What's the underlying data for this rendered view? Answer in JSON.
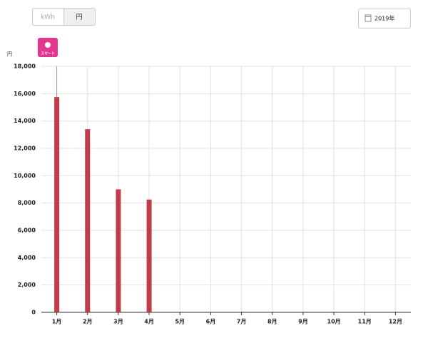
{
  "toggle": {
    "kwh": "kWh",
    "yen": "円"
  },
  "year_button": "2019年",
  "badge": "スマート",
  "chart_data": {
    "type": "bar",
    "y_label": "円",
    "categories": [
      "1月",
      "2月",
      "3月",
      "4月",
      "5月",
      "6月",
      "7月",
      "8月",
      "9月",
      "10月",
      "11月",
      "12月"
    ],
    "values": [
      15750,
      13400,
      9000,
      8250,
      null,
      null,
      null,
      null,
      null,
      null,
      null,
      null
    ],
    "color": "#c23b4b",
    "ylim": [
      0,
      18000
    ],
    "yticks": [
      0,
      {
        "value": 2000,
        "label": "2,000"
      },
      {
        "value": 4000,
        "label": "4,000"
      },
      {
        "value": 6000,
        "label": "6,000"
      },
      {
        "value": 8000,
        "label": "8,000"
      },
      {
        "value": 10000,
        "label": "10,000"
      },
      {
        "value": 12000,
        "label": "12,000"
      },
      {
        "value": 14000,
        "label": "14,000"
      },
      {
        "value": 16000,
        "label": "16,000"
      },
      {
        "value": 18000,
        "label": "18,000"
      }
    ],
    "grid": true
  }
}
